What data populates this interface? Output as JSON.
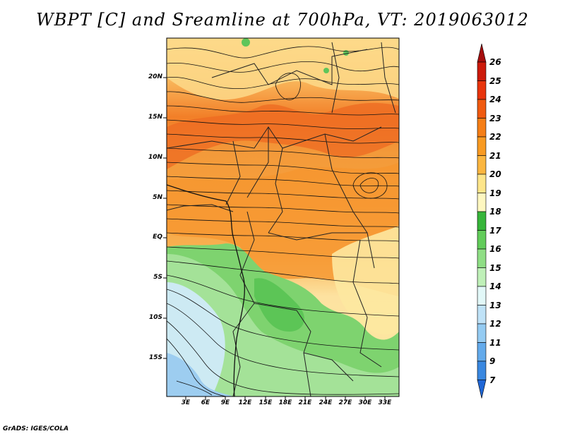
{
  "title": "WBPT [C] and Sreamline at 700hPa, VT: 2019063012",
  "credit": "GrADS: IGES/COLA",
  "map": {
    "lat_labels": [
      "20N",
      "15N",
      "10N",
      "5N",
      "EQ",
      "5S",
      "10S",
      "15S"
    ],
    "lon_labels": [
      "3E",
      "6E",
      "9E",
      "12E",
      "15E",
      "18E",
      "21E",
      "24E",
      "27E",
      "30E",
      "33E"
    ]
  },
  "colorbar": {
    "labels": [
      "26",
      "25",
      "24",
      "23",
      "22",
      "21",
      "20",
      "19",
      "18",
      "17",
      "16",
      "15",
      "14",
      "13",
      "12",
      "11",
      "9",
      "7"
    ],
    "colors": [
      "#a50d0d",
      "#cc1a0a",
      "#e8340c",
      "#f05a10",
      "#f57e16",
      "#f89a22",
      "#fbb640",
      "#fde58a",
      "#fef7c0",
      "#37b53a",
      "#62cc5a",
      "#8fde85",
      "#bff0b8",
      "#e2f8f8",
      "#bfe2f7",
      "#94cbf2",
      "#63aaeb",
      "#3a88e0",
      "#1f66d6"
    ]
  },
  "colors": {
    "ocean_south": "#cdeaf3",
    "green_deep": "#4fbf4c",
    "green_mid": "#7ed36f",
    "green_light": "#a9e39c",
    "yellow": "#fdeaa0",
    "orange": "#f7a03c",
    "orange_deep": "#f27f28",
    "red": "#ea5a1c"
  }
}
